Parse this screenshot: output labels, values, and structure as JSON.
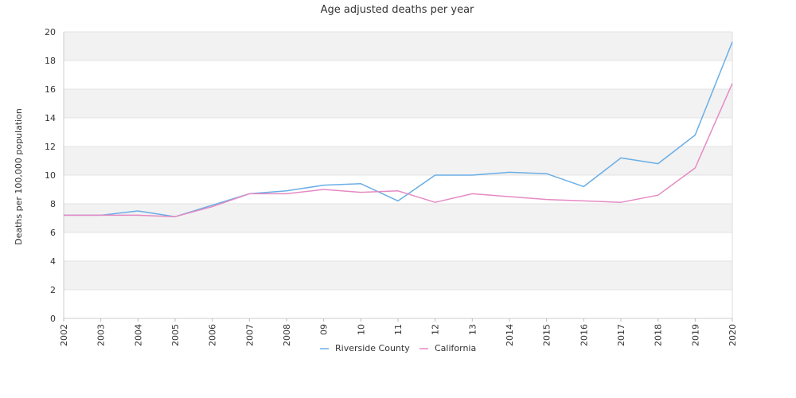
{
  "chart_data": {
    "type": "line",
    "title": "Age adjusted deaths per year",
    "ylabel": "Deaths per 100,000 population",
    "xlabel": "",
    "categories": [
      "2002",
      "2003",
      "2004",
      "2005",
      "2006",
      "2007",
      "2008",
      "09",
      "10",
      "11",
      "12",
      "13",
      "2014",
      "2015",
      "2016",
      "2017",
      "2018",
      "2019",
      "2020"
    ],
    "ylim": [
      0,
      20
    ],
    "yticks": [
      "0",
      "2",
      "4",
      "6",
      "8",
      "10",
      "12",
      "14",
      "16",
      "18",
      "20"
    ],
    "grid": "horizontal alternating bands",
    "legend_position": "bottom",
    "series": [
      {
        "name": "Riverside County",
        "color": "#6aaee6",
        "values": [
          7.2,
          7.2,
          7.5,
          7.1,
          7.9,
          8.7,
          8.9,
          9.3,
          9.4,
          8.2,
          10.0,
          10.0,
          10.2,
          10.1,
          9.2,
          11.2,
          10.8,
          12.8,
          19.3
        ]
      },
      {
        "name": "California",
        "color": "#e58ac4",
        "values": [
          7.2,
          7.2,
          7.2,
          7.1,
          7.8,
          8.7,
          8.7,
          9.0,
          8.8,
          8.9,
          8.1,
          8.7,
          8.5,
          8.3,
          8.2,
          8.1,
          8.6,
          10.5,
          16.4
        ]
      }
    ]
  }
}
